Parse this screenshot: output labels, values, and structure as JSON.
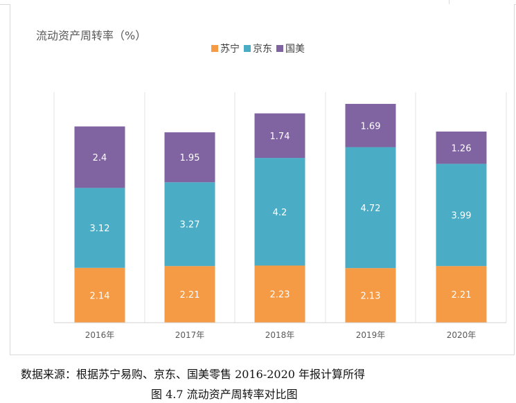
{
  "chart_data": {
    "type": "bar",
    "stacked": true,
    "title": "流动资产周转率（%）",
    "categories": [
      "2016年",
      "2017年",
      "2018年",
      "2019年",
      "2020年"
    ],
    "series": [
      {
        "name": "苏宁",
        "color": "#f59a45",
        "values": [
          2.14,
          2.21,
          2.23,
          2.13,
          2.21
        ]
      },
      {
        "name": "京东",
        "color": "#4bacc6",
        "values": [
          3.12,
          3.27,
          4.2,
          4.72,
          3.99
        ]
      },
      {
        "name": "国美",
        "color": "#8064a2",
        "values": [
          2.4,
          1.95,
          1.74,
          1.69,
          1.26
        ]
      }
    ],
    "ylim": [
      0,
      9.0
    ],
    "grid": false,
    "legend": "top"
  },
  "source_note": "数据来源：根据苏宁易购、京东、国美零售 2016-2020 年报计算所得",
  "caption": "图 4.7 流动资产周转率对比图"
}
